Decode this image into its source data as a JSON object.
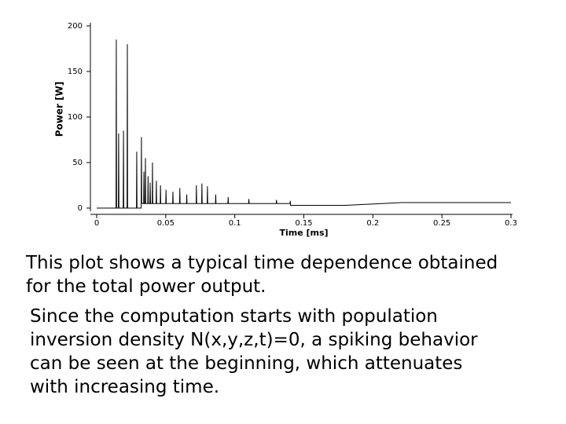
{
  "chart_data": {
    "type": "line",
    "xlabel": "Time [ms]",
    "ylabel": "Power [W]",
    "x": [
      0,
      0.014,
      0.0142,
      0.0144,
      0.0157,
      0.0159,
      0.0161,
      0.0192,
      0.0194,
      0.0196,
      0.022,
      0.0222,
      0.0224,
      0.0288,
      0.029,
      0.0292,
      0.0322,
      0.0324,
      0.0326,
      0.034,
      0.0342,
      0.0344,
      0.0351,
      0.0353,
      0.0355,
      0.037,
      0.0372,
      0.0374,
      0.0385,
      0.0387,
      0.039,
      0.0402,
      0.0404,
      0.0406,
      0.043,
      0.0432,
      0.0434,
      0.046,
      0.0462,
      0.0464,
      0.05,
      0.0502,
      0.0504,
      0.055,
      0.0552,
      0.0554,
      0.06,
      0.0602,
      0.0604,
      0.065,
      0.0652,
      0.0654,
      0.072,
      0.0722,
      0.0724,
      0.076,
      0.0762,
      0.0764,
      0.08,
      0.0802,
      0.0804,
      0.086,
      0.0862,
      0.0864,
      0.095,
      0.0952,
      0.0954,
      0.11,
      0.1102,
      0.1104,
      0.13,
      0.1302,
      0.1304,
      0.14,
      0.1402,
      0.1404,
      0.18,
      0.22,
      0.3
    ],
    "series": [
      {
        "color": "#000000",
        "values": [
          0,
          0,
          185,
          0,
          0,
          82,
          0,
          0,
          85,
          0,
          0,
          180,
          0,
          0,
          62,
          0,
          0,
          78,
          5,
          5,
          40,
          5,
          5,
          55,
          5,
          5,
          35,
          5,
          5,
          28,
          5,
          5,
          50,
          5,
          5,
          30,
          5,
          5,
          25,
          5,
          5,
          20,
          5,
          5,
          18,
          5,
          5,
          22,
          5,
          5,
          15,
          5,
          5,
          25,
          5,
          5,
          27,
          5,
          5,
          24,
          5,
          5,
          15,
          5,
          5,
          12,
          5,
          5,
          10,
          5,
          5,
          9,
          5,
          5,
          8,
          3,
          3,
          6,
          6
        ]
      }
    ],
    "xlim": [
      0,
      0.3
    ],
    "xticks": [
      0,
      0.05,
      0.1,
      0.15,
      0.2,
      0.25,
      0.3
    ],
    "ylim": [
      0,
      200
    ],
    "yticks": [
      0,
      50,
      100,
      150,
      200
    ]
  },
  "paragraphs": [
    [
      "This plot shows a typical time dependence obtained",
      "for the total power output."
    ],
    [
      "Since the computation  starts with population",
      "inversion density N(x,y,z,t)=0, a spiking behavior",
      "can be seen at the beginning, which attenuates",
      "with increasing time."
    ]
  ]
}
